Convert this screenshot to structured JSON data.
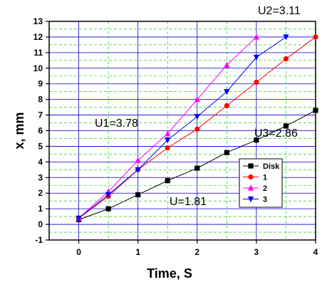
{
  "chart_data": {
    "type": "line",
    "xlabel": "Time,  S",
    "ylabel": "x, mm",
    "xlim": [
      -0.5,
      4
    ],
    "ylim": [
      -1,
      13
    ],
    "x_ticks": [
      0,
      1,
      2,
      3,
      4
    ],
    "y_ticks": [
      -1,
      0,
      1,
      2,
      3,
      4,
      5,
      6,
      7,
      8,
      9,
      10,
      11,
      12,
      13
    ],
    "grid": true,
    "legend_position": "lower-right",
    "series": [
      {
        "name": "Disk",
        "color": "#000000",
        "marker": "square",
        "x": [
          0,
          0.5,
          1,
          1.5,
          2,
          2.5,
          3,
          3.5,
          4
        ],
        "y": [
          0.3,
          1.0,
          1.9,
          2.8,
          3.6,
          4.6,
          5.4,
          6.3,
          7.3
        ]
      },
      {
        "name": "1",
        "color": "#ff0000",
        "marker": "circle",
        "x": [
          0,
          0.5,
          1,
          1.5,
          2,
          2.5,
          3,
          3.5,
          4
        ],
        "y": [
          0.4,
          1.8,
          3.5,
          4.9,
          6.1,
          7.6,
          9.1,
          10.6,
          12.0
        ]
      },
      {
        "name": "2",
        "color": "#ff00ff",
        "marker": "triangle-up",
        "x": [
          0,
          0.5,
          1,
          1.5,
          2,
          2.5,
          3
        ],
        "y": [
          0.4,
          2.1,
          4.1,
          5.8,
          8.0,
          10.2,
          12.0
        ]
      },
      {
        "name": "3",
        "color": "#0000ff",
        "marker": "triangle-down",
        "x": [
          0,
          0.5,
          1,
          1.5,
          2,
          2.5,
          3,
          3.5
        ],
        "y": [
          0.4,
          1.9,
          3.5,
          5.4,
          6.9,
          8.5,
          10.7,
          12.0
        ]
      }
    ],
    "annotations": [
      {
        "text": "U2=3.11"
      },
      {
        "text": "U3=2.86"
      },
      {
        "text": "U1=3.78"
      },
      {
        "text": "U=1.81"
      }
    ]
  }
}
